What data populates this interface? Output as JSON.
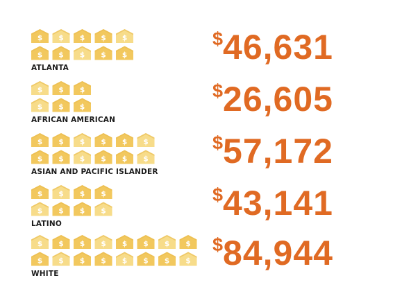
{
  "chart_data": {
    "type": "pictogram",
    "unit_icon": "house-dollar-icon",
    "series": [
      {
        "category": "ATLANTA",
        "value": 46631,
        "value_label": "46,631",
        "icons": 10,
        "icons_per_row": 5
      },
      {
        "category": "AFRICAN AMERICAN",
        "value": 26605,
        "value_label": "26,605",
        "icons": 6,
        "icons_per_row": 3
      },
      {
        "category": "ASIAN AND PACIFIC ISLANDER",
        "value": 57172,
        "value_label": "57,172",
        "icons": 12,
        "icons_per_row": 6
      },
      {
        "category": "LATINO",
        "value": 43141,
        "value_label": "43,141",
        "icons": 8,
        "icons_per_row": 4
      },
      {
        "category": "WHITE",
        "value": 84944,
        "value_label": "84,944",
        "icons": 16,
        "icons_per_row": 8
      }
    ],
    "currency_symbol": "$",
    "colors": {
      "icon_fill": "#f2c85e",
      "icon_light": "#f7dc8a",
      "icon_symbol": "#ffffff",
      "value_text": "#e06a23",
      "label_text": "#1b1b1b"
    }
  }
}
